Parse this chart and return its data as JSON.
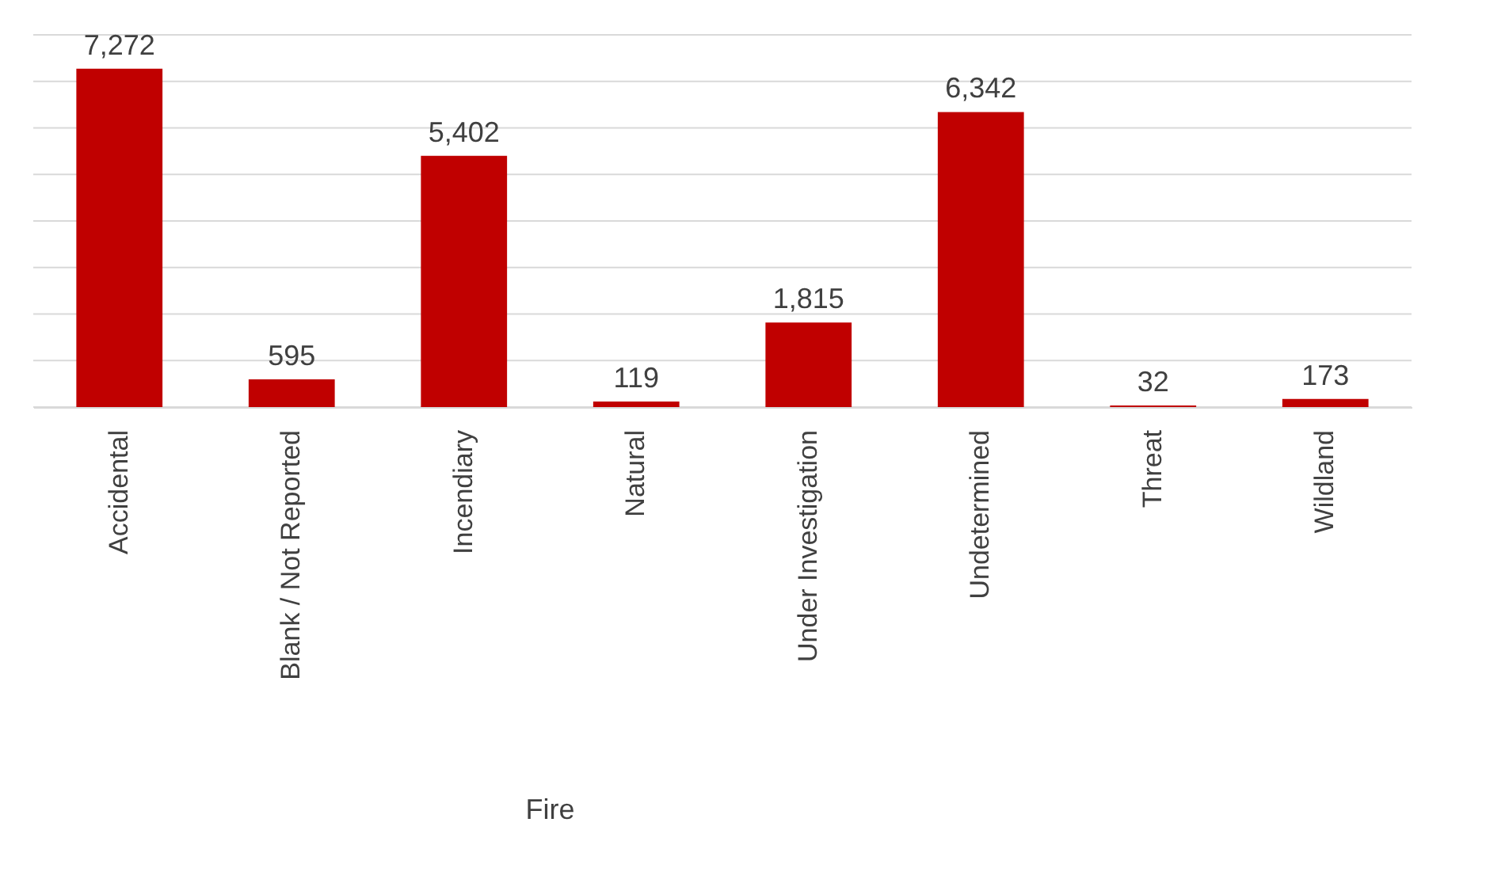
{
  "chart_data": {
    "type": "bar",
    "categories": [
      "Accidental",
      "Blank / Not Reported",
      "Incendiary",
      "Natural",
      "Under Investigation",
      "Undetermined",
      "Threat",
      "Wildland"
    ],
    "values": [
      7272,
      595,
      5402,
      119,
      1815,
      6342,
      32,
      173
    ],
    "color": "#c00000",
    "value_labels": [
      "7,272",
      "595",
      "5,402",
      "119",
      "1,815",
      "6,342",
      "32",
      "173"
    ],
    "ylim": [
      0,
      8000
    ],
    "yticks": [
      {
        "value": 0,
        "label": null
      },
      {
        "value": 1000,
        "label": null
      },
      {
        "value": 2000,
        "label": null
      },
      {
        "value": 3000,
        "label": null
      },
      {
        "value": 4000,
        "label": null
      },
      {
        "value": 5000,
        "label": null
      },
      {
        "value": 6000,
        "label": null
      },
      {
        "value": 7000,
        "label": null
      },
      {
        "value": 8000,
        "label": null
      }
    ],
    "tick_labels": "x",
    "grid": "y",
    "annotations": [
      "Fire"
    ]
  }
}
